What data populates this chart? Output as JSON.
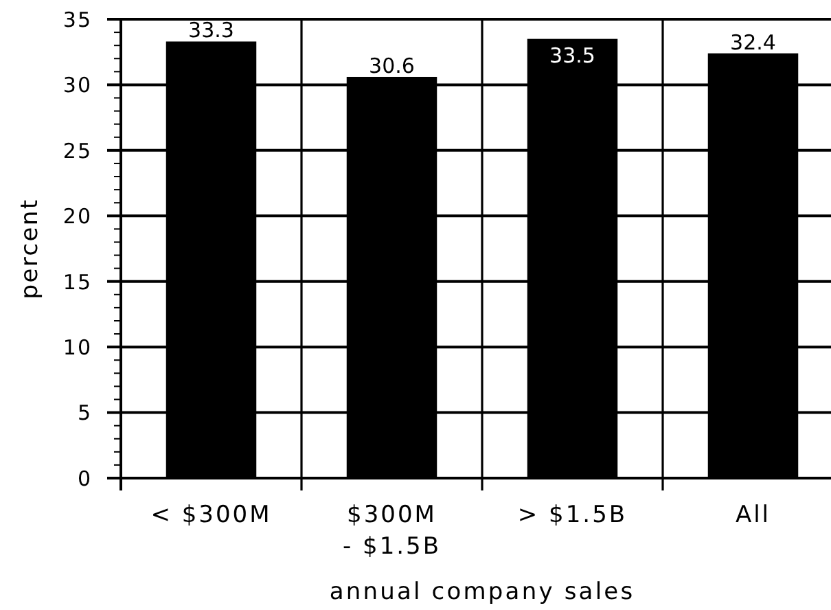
{
  "chart_data": {
    "type": "bar",
    "xlabel": "annual company sales",
    "ylabel": "percent",
    "categories": [
      "< $300M",
      "$300M\n- $1.5B",
      "> $1.5B",
      "All"
    ],
    "values": [
      33.3,
      30.6,
      33.5,
      32.4
    ],
    "color": "#000000",
    "ylim": [
      0,
      35
    ],
    "yticks": [
      0,
      {
        "value": 1,
        "label": null
      },
      {
        "value": 2,
        "label": null
      },
      {
        "value": 3,
        "label": null
      },
      {
        "value": 4,
        "label": null
      },
      5,
      {
        "value": 6,
        "label": null
      },
      {
        "value": 7,
        "label": null
      },
      {
        "value": 8,
        "label": null
      },
      {
        "value": 9,
        "label": null
      },
      10,
      {
        "value": 11,
        "label": null
      },
      {
        "value": 12,
        "label": null
      },
      {
        "value": 13,
        "label": null
      },
      {
        "value": 14,
        "label": null
      },
      15,
      {
        "value": 16,
        "label": null
      },
      {
        "value": 17,
        "label": null
      },
      {
        "value": 18,
        "label": null
      },
      {
        "value": 19,
        "label": null
      },
      20,
      {
        "value": 21,
        "label": null
      },
      {
        "value": 22,
        "label": null
      },
      {
        "value": 23,
        "label": null
      },
      {
        "value": 24,
        "label": null
      },
      25,
      {
        "value": 26,
        "label": null
      },
      {
        "value": 27,
        "label": null
      },
      {
        "value": 28,
        "label": null
      },
      {
        "value": 29,
        "label": null
      },
      30,
      {
        "value": 31,
        "label": null
      },
      {
        "value": 32,
        "label": null
      },
      {
        "value": 33,
        "label": null
      },
      {
        "value": 34,
        "label": null
      },
      35
    ],
    "grid": true,
    "data_labels": true
  }
}
